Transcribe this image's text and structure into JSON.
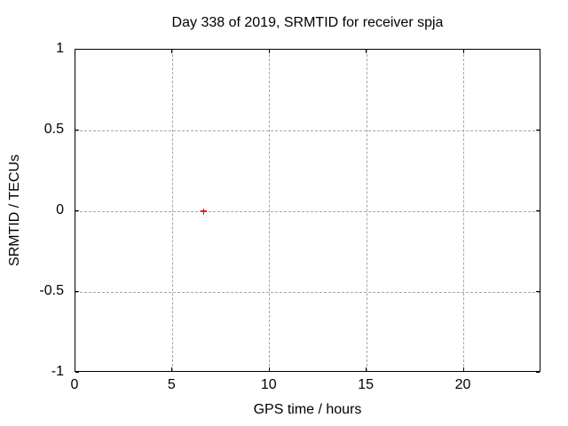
{
  "figure": {
    "background": "#ffffff",
    "text_color": "#000000"
  },
  "chart_data": {
    "type": "scatter",
    "title": "Day 338 of 2019, SRMTID for receiver spja",
    "xlabel": "GPS time / hours",
    "ylabel": "SRMTID / TECUs",
    "xlim": [
      0,
      24
    ],
    "ylim": [
      -1,
      1
    ],
    "xticks": [
      {
        "value": 0,
        "label": "0"
      },
      {
        "value": 5,
        "label": "5"
      },
      {
        "value": 10,
        "label": "10"
      },
      {
        "value": 15,
        "label": "15"
      },
      {
        "value": 20,
        "label": "20"
      }
    ],
    "yticks": [
      {
        "value": -1,
        "label": "-1"
      },
      {
        "value": -0.5,
        "label": "-0.5"
      },
      {
        "value": 0,
        "label": "0"
      },
      {
        "value": 0.5,
        "label": "0.5"
      },
      {
        "value": 1,
        "label": "1"
      }
    ],
    "grid": true,
    "legend": "none",
    "colors": {
      "border": "#000000",
      "grid": "#a6a6a6"
    },
    "series": [
      {
        "name": "SRMTID",
        "marker": "plus",
        "color": "#ff0000",
        "points": [
          {
            "x": 6.6,
            "y": 0.0
          }
        ]
      }
    ]
  }
}
